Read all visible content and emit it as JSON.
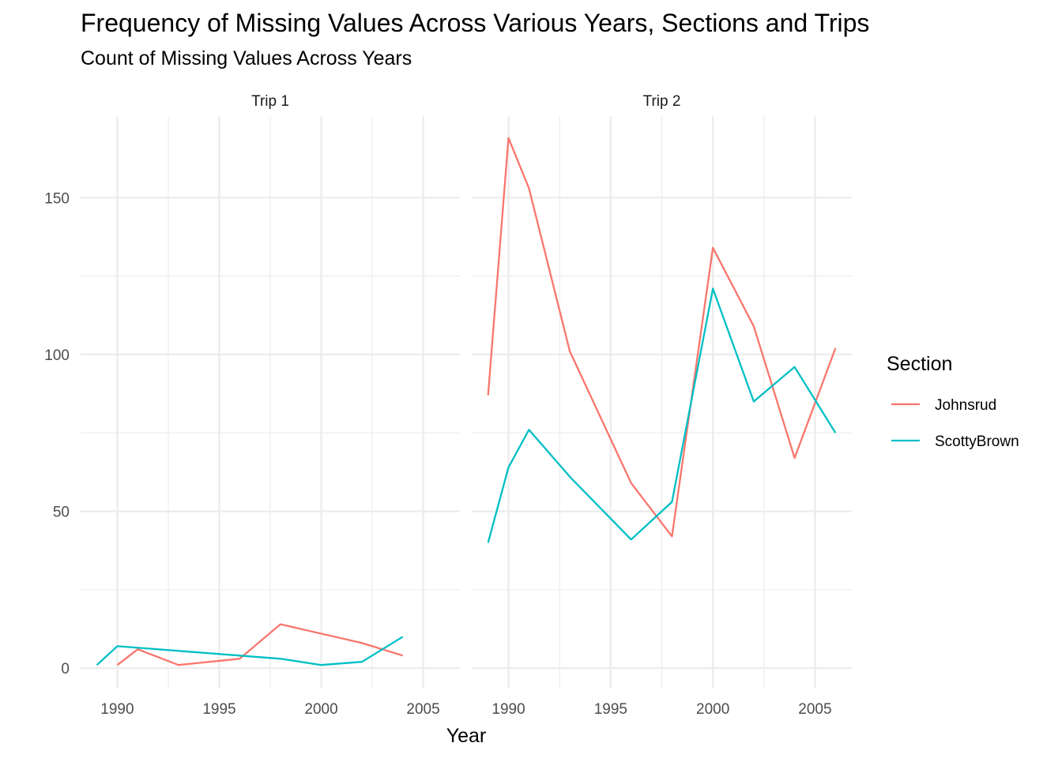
{
  "chart_data": {
    "type": "line",
    "title": "Frequency of Missing Values Across Various Years, Sections and Trips",
    "subtitle": "Count of Missing Values Across Years",
    "xlabel": "Year",
    "ylabel": "",
    "xlim": [
      1988.2,
      2006.8
    ],
    "ylim": [
      -6.5,
      176
    ],
    "x_ticks": [
      1990,
      1995,
      2000,
      2005
    ],
    "x_minor_ticks": [
      1992.5,
      1997.5,
      2002.5
    ],
    "y_ticks": [
      0,
      50,
      100,
      150
    ],
    "y_minor_ticks": [
      25,
      75,
      125
    ],
    "grid": true,
    "legend": {
      "title": "Section",
      "position": "right",
      "entries": [
        {
          "name": "Johnsrud",
          "color": "#F8766D"
        },
        {
          "name": "ScottyBrown",
          "color": "#00BFC4"
        }
      ]
    },
    "panels": [
      {
        "strip": "Trip 1",
        "series": [
          {
            "name": "Johnsrud",
            "color": "#F8766D",
            "x": [
              1990,
              1991,
              1993,
              1996,
              1998,
              2002,
              2004
            ],
            "y": [
              1,
              6,
              1,
              3,
              14,
              8,
              4
            ]
          },
          {
            "name": "ScottyBrown",
            "color": "#00BFC4",
            "x": [
              1989,
              1990,
              1996,
              1998,
              2000,
              2002,
              2004
            ],
            "y": [
              1,
              7,
              4,
              3,
              1,
              2,
              10
            ]
          }
        ]
      },
      {
        "strip": "Trip 2",
        "series": [
          {
            "name": "Johnsrud",
            "color": "#F8766D",
            "x": [
              1989,
              1990,
              1991,
              1993,
              1996,
              1998,
              2000,
              2002,
              2004,
              2006
            ],
            "y": [
              87,
              169,
              153,
              101,
              59,
              42,
              134,
              109,
              67,
              102
            ]
          },
          {
            "name": "ScottyBrown",
            "color": "#00BFC4",
            "x": [
              1989,
              1990,
              1991,
              1993,
              1996,
              1998,
              2000,
              2002,
              2004,
              2006
            ],
            "y": [
              40,
              64,
              76,
              61,
              41,
              53,
              121,
              85,
              96,
              75
            ]
          }
        ]
      }
    ]
  }
}
